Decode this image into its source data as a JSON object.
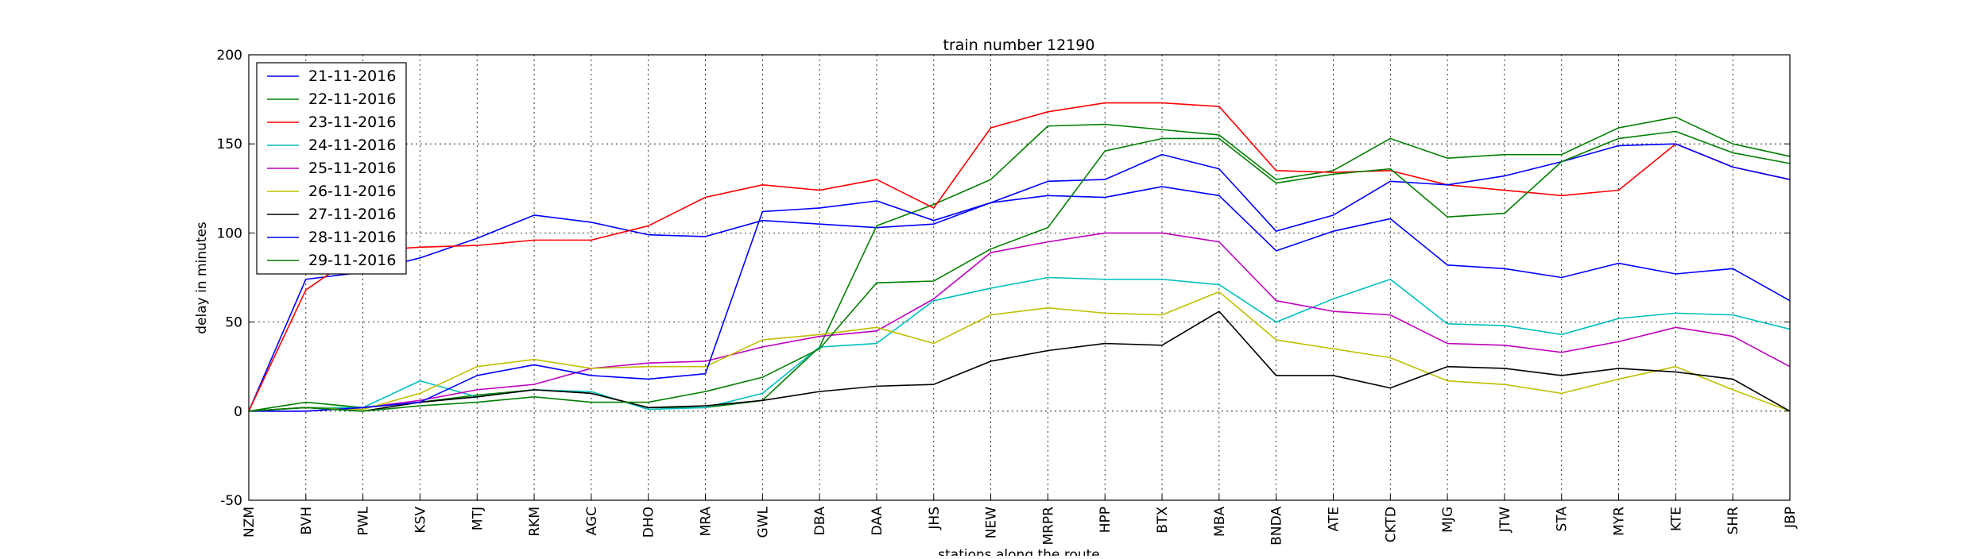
{
  "chart_data": {
    "type": "line",
    "title": "train number 12190",
    "xlabel": "stations along the route",
    "ylabel": "delay in minutes",
    "ylim": [
      -50,
      200
    ],
    "y_ticks": [
      -50,
      0,
      50,
      100,
      150,
      200
    ],
    "grid": true,
    "legend_position": "top-left",
    "categories": [
      "NZM",
      "BVH",
      "PWL",
      "KSV",
      "MTJ",
      "RKM",
      "AGC",
      "DHO",
      "MRA",
      "GWL",
      "DBA",
      "DAA",
      "JHS",
      "NEW",
      "MRPR",
      "HPP",
      "BTX",
      "MBA",
      "BNDA",
      "ATE",
      "CKTD",
      "MJG",
      "JTW",
      "STA",
      "MYR",
      "KTE",
      "SHR",
      "JBP"
    ],
    "series": [
      {
        "name": "21-11-2016",
        "color": "#0000ff",
        "values": [
          0,
          74,
          78,
          86,
          97,
          110,
          106,
          99,
          98,
          107,
          105,
          103,
          105,
          117,
          121,
          120,
          126,
          121,
          90,
          101,
          108,
          82,
          80,
          75,
          83,
          77,
          80,
          62
        ]
      },
      {
        "name": "22-11-2016",
        "color": "#008000",
        "values": [
          0,
          5,
          2,
          5,
          9,
          12,
          10,
          2,
          2,
          6,
          36,
          104,
          116,
          130,
          160,
          161,
          158,
          155,
          130,
          135,
          153,
          142,
          144,
          144,
          159,
          165,
          150,
          143
        ]
      },
      {
        "name": "23-11-2016",
        "color": "#ff0000",
        "values": [
          0,
          68,
          90,
          92,
          93,
          96,
          96,
          104,
          120,
          127,
          124,
          130,
          114,
          159,
          168,
          173,
          173,
          171,
          135,
          134,
          135,
          127,
          124,
          121,
          124,
          150,
          137,
          130
        ]
      },
      {
        "name": "24-11-2016",
        "color": "#00bfbf",
        "values": [
          0,
          2,
          2,
          17,
          8,
          12,
          11,
          1,
          2,
          10,
          36,
          38,
          62,
          69,
          75,
          74,
          74,
          71,
          50,
          63,
          74,
          49,
          48,
          43,
          52,
          55,
          54,
          46
        ]
      },
      {
        "name": "25-11-2016",
        "color": "#bf00bf",
        "values": [
          0,
          0,
          2,
          6,
          12,
          15,
          24,
          27,
          28,
          36,
          42,
          45,
          63,
          89,
          95,
          100,
          100,
          95,
          62,
          56,
          54,
          38,
          37,
          33,
          39,
          47,
          42,
          25
        ]
      },
      {
        "name": "26-11-2016",
        "color": "#bfbf00",
        "values": [
          0,
          2,
          1,
          10,
          25,
          29,
          24,
          25,
          25,
          40,
          43,
          47,
          38,
          54,
          58,
          55,
          54,
          67,
          40,
          35,
          30,
          17,
          15,
          10,
          18,
          25,
          12,
          0
        ]
      },
      {
        "name": "27-11-2016",
        "color": "#000000",
        "values": [
          0,
          2,
          0,
          5,
          8,
          12,
          10,
          2,
          3,
          6,
          11,
          14,
          15,
          28,
          34,
          38,
          37,
          56,
          20,
          20,
          13,
          25,
          24,
          20,
          24,
          22,
          18,
          0
        ]
      },
      {
        "name": "28-11-2016",
        "color": "#0000ff",
        "values": [
          0,
          0,
          2,
          5,
          20,
          26,
          20,
          18,
          21,
          112,
          114,
          118,
          107,
          117,
          129,
          130,
          144,
          136,
          101,
          110,
          129,
          127,
          132,
          140,
          149,
          150,
          137,
          130
        ]
      },
      {
        "name": "29-11-2016",
        "color": "#008000",
        "values": [
          0,
          2,
          0,
          3,
          5,
          8,
          5,
          5,
          11,
          19,
          35,
          72,
          73,
          91,
          103,
          146,
          153,
          153,
          128,
          133,
          136,
          109,
          111,
          140,
          153,
          157,
          145,
          139
        ]
      }
    ]
  }
}
